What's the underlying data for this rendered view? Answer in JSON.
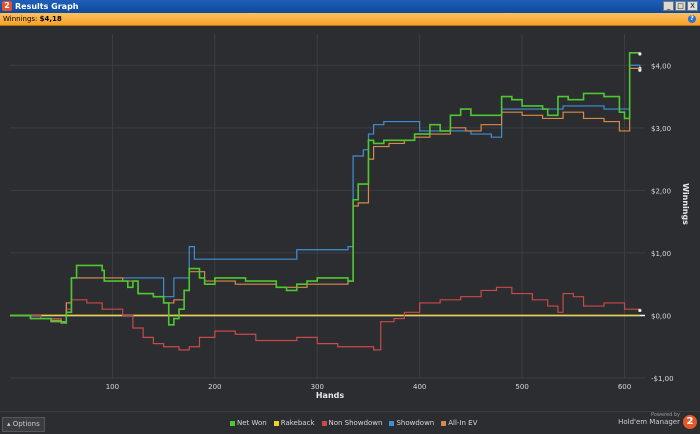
{
  "window": {
    "title": "Results Graph",
    "app_icon_glyph": "2",
    "controls": {
      "minimize": "_",
      "maximize": "□",
      "close": "X"
    }
  },
  "status": {
    "winnings_label": "Winnings:",
    "winnings_value": "$4,18",
    "help_glyph": "?"
  },
  "footer": {
    "options_label": "Options",
    "powered_by": "Powered by",
    "product_name": "Hold'em Manager",
    "logo_glyph": "2"
  },
  "colors": {
    "net_won": "#4ec830",
    "rakeback": "#f2d22a",
    "non_showdown": "#c84a4a",
    "showdown": "#3f8fd6",
    "allin_ev": "#d88a4a",
    "zero_line": "#ffffff",
    "grid": "#3c3e42",
    "background": "#2b2d30"
  },
  "chart_data": {
    "type": "line",
    "xlabel": "Hands",
    "ylabel": "Winnings",
    "xlim": [
      0,
      620
    ],
    "ylim": [
      -1.0,
      4.5
    ],
    "x_ticks": [
      100,
      200,
      300,
      400,
      500,
      600
    ],
    "y_ticks": [
      {
        "value": 4.0,
        "label": "$4,00"
      },
      {
        "value": 3.0,
        "label": "$3,00"
      },
      {
        "value": 2.0,
        "label": "$2,00"
      },
      {
        "value": 1.0,
        "label": "$1,00"
      },
      {
        "value": 0.0,
        "label": "$0,00"
      },
      {
        "value": -1.0,
        "label": "-$1,00"
      }
    ],
    "grid": true,
    "legend_position": "bottom",
    "series": [
      {
        "name": "Net Won",
        "color_key": "net_won",
        "points": [
          [
            0,
            0.0
          ],
          [
            20,
            -0.05
          ],
          [
            40,
            -0.08
          ],
          [
            50,
            -0.12
          ],
          [
            55,
            0.05
          ],
          [
            60,
            0.6
          ],
          [
            65,
            0.8
          ],
          [
            90,
            0.72
          ],
          [
            92,
            0.55
          ],
          [
            110,
            0.55
          ],
          [
            115,
            0.45
          ],
          [
            120,
            0.55
          ],
          [
            125,
            0.35
          ],
          [
            140,
            0.3
          ],
          [
            150,
            0.2
          ],
          [
            155,
            -0.15
          ],
          [
            160,
            -0.05
          ],
          [
            165,
            0.1
          ],
          [
            170,
            0.4
          ],
          [
            175,
            0.75
          ],
          [
            185,
            0.6
          ],
          [
            190,
            0.5
          ],
          [
            200,
            0.6
          ],
          [
            230,
            0.55
          ],
          [
            260,
            0.45
          ],
          [
            270,
            0.4
          ],
          [
            280,
            0.5
          ],
          [
            290,
            0.55
          ],
          [
            300,
            0.6
          ],
          [
            330,
            0.55
          ],
          [
            335,
            1.85
          ],
          [
            340,
            2.1
          ],
          [
            350,
            2.8
          ],
          [
            355,
            2.75
          ],
          [
            365,
            2.8
          ],
          [
            380,
            2.8
          ],
          [
            395,
            2.9
          ],
          [
            400,
            2.9
          ],
          [
            410,
            3.05
          ],
          [
            420,
            2.95
          ],
          [
            430,
            3.2
          ],
          [
            440,
            3.3
          ],
          [
            450,
            3.2
          ],
          [
            470,
            3.2
          ],
          [
            480,
            3.5
          ],
          [
            490,
            3.45
          ],
          [
            500,
            3.35
          ],
          [
            520,
            3.3
          ],
          [
            525,
            3.2
          ],
          [
            535,
            3.5
          ],
          [
            545,
            3.45
          ],
          [
            560,
            3.55
          ],
          [
            580,
            3.5
          ],
          [
            595,
            3.25
          ],
          [
            600,
            3.15
          ],
          [
            605,
            4.2
          ],
          [
            615,
            4.18
          ]
        ]
      },
      {
        "name": "Rakeback",
        "color_key": "rakeback",
        "points": [
          [
            0,
            0.0
          ],
          [
            100,
            0.0
          ],
          [
            200,
            0.0
          ],
          [
            300,
            0.0
          ],
          [
            400,
            0.0
          ],
          [
            500,
            0.0
          ],
          [
            615,
            0.0
          ]
        ]
      },
      {
        "name": "Non Showdown",
        "color_key": "non_showdown",
        "points": [
          [
            0,
            0.0
          ],
          [
            30,
            -0.05
          ],
          [
            50,
            -0.1
          ],
          [
            55,
            0.1
          ],
          [
            60,
            0.25
          ],
          [
            75,
            0.2
          ],
          [
            90,
            0.1
          ],
          [
            110,
            0.0
          ],
          [
            120,
            -0.2
          ],
          [
            130,
            -0.35
          ],
          [
            140,
            -0.45
          ],
          [
            150,
            -0.5
          ],
          [
            165,
            -0.55
          ],
          [
            175,
            -0.5
          ],
          [
            185,
            -0.35
          ],
          [
            200,
            -0.25
          ],
          [
            220,
            -0.3
          ],
          [
            240,
            -0.4
          ],
          [
            260,
            -0.4
          ],
          [
            280,
            -0.35
          ],
          [
            300,
            -0.45
          ],
          [
            320,
            -0.5
          ],
          [
            340,
            -0.5
          ],
          [
            355,
            -0.55
          ],
          [
            362,
            -0.1
          ],
          [
            375,
            -0.05
          ],
          [
            385,
            0.05
          ],
          [
            395,
            0.05
          ],
          [
            400,
            0.2
          ],
          [
            420,
            0.25
          ],
          [
            440,
            0.3
          ],
          [
            460,
            0.4
          ],
          [
            475,
            0.45
          ],
          [
            490,
            0.35
          ],
          [
            510,
            0.25
          ],
          [
            525,
            0.15
          ],
          [
            535,
            0.05
          ],
          [
            540,
            0.35
          ],
          [
            550,
            0.3
          ],
          [
            560,
            0.15
          ],
          [
            580,
            0.2
          ],
          [
            600,
            0.1
          ],
          [
            615,
            0.08
          ]
        ]
      },
      {
        "name": "Showdown",
        "color_key": "showdown",
        "points": [
          [
            0,
            0.0
          ],
          [
            20,
            -0.05
          ],
          [
            40,
            -0.1
          ],
          [
            50,
            -0.1
          ],
          [
            55,
            0.2
          ],
          [
            60,
            0.6
          ],
          [
            140,
            0.6
          ],
          [
            150,
            0.3
          ],
          [
            160,
            0.6
          ],
          [
            170,
            0.6
          ],
          [
            175,
            1.1
          ],
          [
            180,
            0.9
          ],
          [
            200,
            0.9
          ],
          [
            240,
            0.9
          ],
          [
            270,
            0.9
          ],
          [
            280,
            1.05
          ],
          [
            330,
            1.1
          ],
          [
            335,
            2.55
          ],
          [
            345,
            2.65
          ],
          [
            350,
            2.9
          ],
          [
            355,
            3.05
          ],
          [
            365,
            3.1
          ],
          [
            380,
            3.1
          ],
          [
            390,
            3.1
          ],
          [
            400,
            2.95
          ],
          [
            420,
            2.95
          ],
          [
            440,
            2.95
          ],
          [
            450,
            2.9
          ],
          [
            470,
            2.85
          ],
          [
            480,
            3.3
          ],
          [
            490,
            3.3
          ],
          [
            500,
            3.3
          ],
          [
            520,
            3.3
          ],
          [
            540,
            3.35
          ],
          [
            560,
            3.35
          ],
          [
            580,
            3.3
          ],
          [
            600,
            3.3
          ],
          [
            605,
            4.0
          ],
          [
            615,
            3.95
          ]
        ]
      },
      {
        "name": "All-In EV",
        "color_key": "allin_ev",
        "points": [
          [
            0,
            0.0
          ],
          [
            20,
            -0.05
          ],
          [
            40,
            -0.1
          ],
          [
            50,
            -0.1
          ],
          [
            55,
            0.2
          ],
          [
            60,
            0.6
          ],
          [
            90,
            0.6
          ],
          [
            110,
            0.55
          ],
          [
            125,
            0.35
          ],
          [
            140,
            0.3
          ],
          [
            150,
            0.2
          ],
          [
            160,
            0.25
          ],
          [
            170,
            0.4
          ],
          [
            175,
            0.7
          ],
          [
            190,
            0.55
          ],
          [
            220,
            0.5
          ],
          [
            260,
            0.45
          ],
          [
            290,
            0.5
          ],
          [
            330,
            0.55
          ],
          [
            335,
            1.75
          ],
          [
            340,
            1.8
          ],
          [
            350,
            2.5
          ],
          [
            355,
            2.7
          ],
          [
            370,
            2.75
          ],
          [
            385,
            2.8
          ],
          [
            395,
            2.85
          ],
          [
            410,
            2.9
          ],
          [
            430,
            3.0
          ],
          [
            445,
            2.95
          ],
          [
            460,
            3.05
          ],
          [
            480,
            3.25
          ],
          [
            500,
            3.2
          ],
          [
            520,
            3.15
          ],
          [
            540,
            3.25
          ],
          [
            560,
            3.15
          ],
          [
            580,
            3.1
          ],
          [
            595,
            2.95
          ],
          [
            600,
            2.95
          ],
          [
            605,
            3.95
          ],
          [
            615,
            3.92
          ]
        ]
      }
    ]
  }
}
